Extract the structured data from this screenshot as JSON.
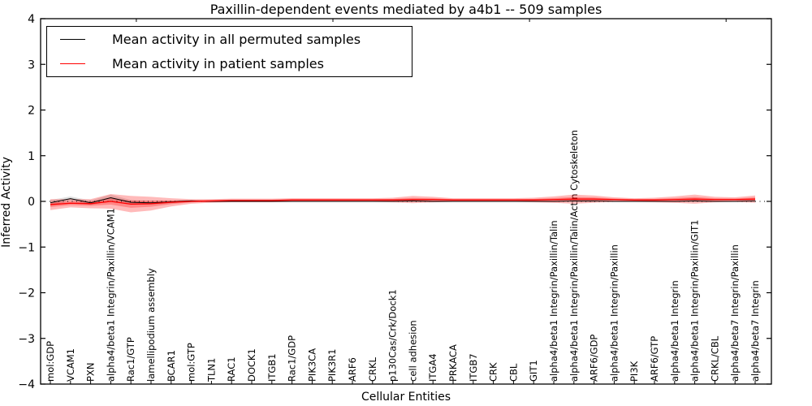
{
  "title": "Paxillin-dependent events mediated by a4b1 -- 509 samples",
  "chart_data": {
    "type": "line",
    "title": "Paxillin-dependent events mediated by a4b1 -- 509 samples",
    "xlabel": "Cellular Entities",
    "ylabel": "Inferred Activity",
    "ylim": [
      -4,
      4
    ],
    "yticks": [
      -4,
      -3,
      -2,
      -1,
      0,
      1,
      2,
      3,
      4
    ],
    "grid": false,
    "zero_line_style": "dotted",
    "legend_position": "upper left",
    "x_tick_label_rotation": 90,
    "categories": [
      "mol:GDP",
      "VCAM1",
      "PXN",
      "alpha4/beta1 Integrin/Paxillin/VCAM1",
      "Rac1/GTP",
      "lamellipodium assembly",
      "BCAR1",
      "mol:GTP",
      "TLN1",
      "RAC1",
      "DOCK1",
      "ITGB1",
      "Rac1/GDP",
      "PIK3CA",
      "PIK3R1",
      "ARF6",
      "CRKL",
      "p130Cas/Crk/Dock1",
      "cell adhesion",
      "ITGA4",
      "PRKACA",
      "ITGB7",
      "CRK",
      "CBL",
      "GIT1",
      "alpha4/beta1 Integrin/Paxillin/Talin",
      "alpha4/beta1 Integrin/Paxillin/Talin/Actin Cytoskeleton",
      "ARF6/GDP",
      "alpha4/beta1 Integrin/Paxillin",
      "PI3K",
      "ARF6/GTP",
      "alpha4/beta1 Integrin",
      "alpha4/beta1 Integrin/Paxillin/GIT1",
      "CRKL/CBL",
      "alpha4/beta7 Integrin/Paxillin",
      "alpha4/beta7 Integrin"
    ],
    "series": [
      {
        "name": "Mean activity in all permuted samples",
        "color": "#000000",
        "band_color_alpha": 0.12,
        "values": [
          -0.03,
          0.06,
          -0.03,
          0.08,
          -0.02,
          -0.03,
          -0.01,
          0.01,
          0.0,
          0.0,
          0.0,
          0.0,
          0.0,
          0.0,
          0.0,
          0.0,
          0.0,
          0.0,
          0.01,
          0.0,
          0.0,
          0.0,
          0.0,
          0.0,
          0.0,
          0.0,
          0.01,
          0.01,
          0.0,
          0.0,
          0.0,
          0.0,
          0.01,
          0.0,
          0.0,
          0.01
        ],
        "band_halfwidth": [
          0.06,
          0.05,
          0.05,
          0.07,
          0.05,
          0.04,
          0.03,
          0.02,
          0.02,
          0.01,
          0.01,
          0.01,
          0.01,
          0.01,
          0.01,
          0.01,
          0.01,
          0.01,
          0.02,
          0.02,
          0.01,
          0.01,
          0.01,
          0.01,
          0.01,
          0.01,
          0.02,
          0.02,
          0.01,
          0.01,
          0.01,
          0.01,
          0.02,
          0.01,
          0.01,
          0.02
        ]
      },
      {
        "name": "Mean activity in patient samples",
        "color": "#ff0000",
        "band_color_alpha": 0.27,
        "values": [
          -0.07,
          -0.04,
          -0.05,
          0.0,
          -0.06,
          -0.05,
          -0.02,
          0.0,
          0.01,
          0.02,
          0.02,
          0.02,
          0.03,
          0.03,
          0.03,
          0.03,
          0.03,
          0.03,
          0.04,
          0.04,
          0.03,
          0.03,
          0.03,
          0.03,
          0.03,
          0.04,
          0.05,
          0.05,
          0.04,
          0.03,
          0.03,
          0.04,
          0.05,
          0.04,
          0.04,
          0.05
        ],
        "band_halfwidth": [
          0.12,
          0.09,
          0.1,
          0.16,
          0.18,
          0.15,
          0.09,
          0.05,
          0.04,
          0.04,
          0.04,
          0.04,
          0.04,
          0.04,
          0.04,
          0.04,
          0.04,
          0.05,
          0.08,
          0.06,
          0.04,
          0.04,
          0.04,
          0.04,
          0.05,
          0.07,
          0.1,
          0.08,
          0.05,
          0.04,
          0.05,
          0.07,
          0.1,
          0.06,
          0.05,
          0.08
        ]
      }
    ]
  },
  "legend": {
    "items": [
      {
        "label": "Mean activity in all permuted samples",
        "color": "#000000"
      },
      {
        "label": "Mean activity in patient samples",
        "color": "#ff0000"
      }
    ]
  }
}
